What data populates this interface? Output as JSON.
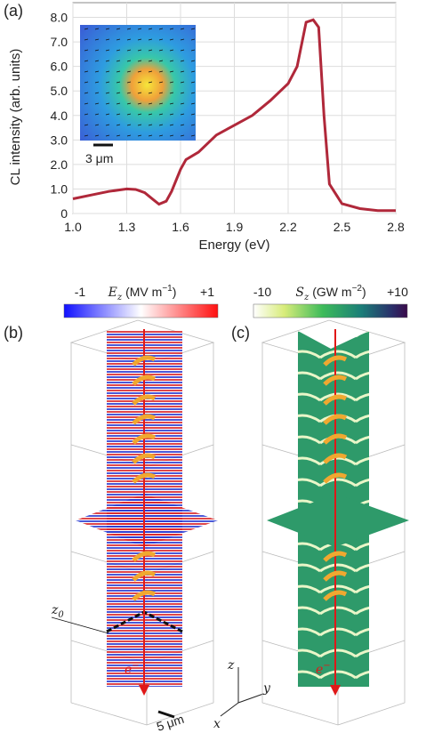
{
  "chart_data": {
    "type": "line",
    "label": "(a)",
    "x_label": "Energy (eV)",
    "y_label": "CL intensity (arb. units)",
    "x": [
      1.0,
      1.1,
      1.2,
      1.3,
      1.35,
      1.4,
      1.45,
      1.48,
      1.52,
      1.55,
      1.6,
      1.63,
      1.7,
      1.8,
      1.9,
      2.0,
      2.1,
      2.2,
      2.25,
      2.3,
      2.34,
      2.37,
      2.4,
      2.43,
      2.5,
      2.6,
      2.7,
      2.8
    ],
    "values": [
      0.6,
      0.75,
      0.9,
      1.0,
      0.98,
      0.85,
      0.55,
      0.38,
      0.5,
      0.9,
      1.8,
      2.2,
      2.5,
      3.2,
      3.6,
      4.0,
      4.6,
      5.3,
      6.0,
      7.8,
      7.9,
      7.6,
      4.0,
      1.2,
      0.4,
      0.2,
      0.12,
      0.12
    ],
    "color": "#b0283a",
    "xlim": [
      1.0,
      2.8
    ],
    "ylim": [
      0,
      8.6
    ],
    "xticks": [
      {
        "value": 1.0,
        "label": "1.0"
      },
      {
        "value": 1.3,
        "label": "1.3"
      },
      {
        "value": 1.6,
        "label": "1.6"
      },
      {
        "value": 1.9,
        "label": "1.9"
      },
      {
        "value": 2.2,
        "label": "2.2"
      },
      {
        "value": 2.5,
        "label": "2.5"
      },
      {
        "value": 2.8,
        "label": "2.8"
      }
    ],
    "yticks": [
      0,
      {
        "value": 1,
        "label": "1.0"
      },
      {
        "value": 2,
        "label": "2.0"
      },
      {
        "value": 3,
        "label": "3.0"
      },
      {
        "value": 4,
        "label": "4.0"
      },
      {
        "value": 5,
        "label": "5.0"
      },
      {
        "value": 6,
        "label": "6.0"
      },
      {
        "value": 7,
        "label": "7.0"
      },
      {
        "value": 8,
        "label": "8.0"
      }
    ],
    "grid": true,
    "inset_scale": "3 μm"
  },
  "figure": {
    "panel_b": {
      "label": "(b)",
      "symbol": "E",
      "subscript": "z",
      "unit": "(MV m",
      "unit_exp": "−1",
      "unit_close": ")",
      "min": "-1",
      "max": "+1",
      "electron": "e",
      "electron_sup": "−",
      "z0": "z",
      "z0_sub": "0",
      "scale": "5 μm"
    },
    "panel_c": {
      "label": "(c)",
      "symbol": "S",
      "subscript": "z",
      "unit": "(GW m",
      "unit_exp": "−2",
      "unit_close": ")",
      "min": "-10",
      "max": "+10",
      "electron": "e",
      "electron_sup": "−"
    },
    "axes": {
      "x": "x",
      "y": "y",
      "z": "z"
    }
  }
}
